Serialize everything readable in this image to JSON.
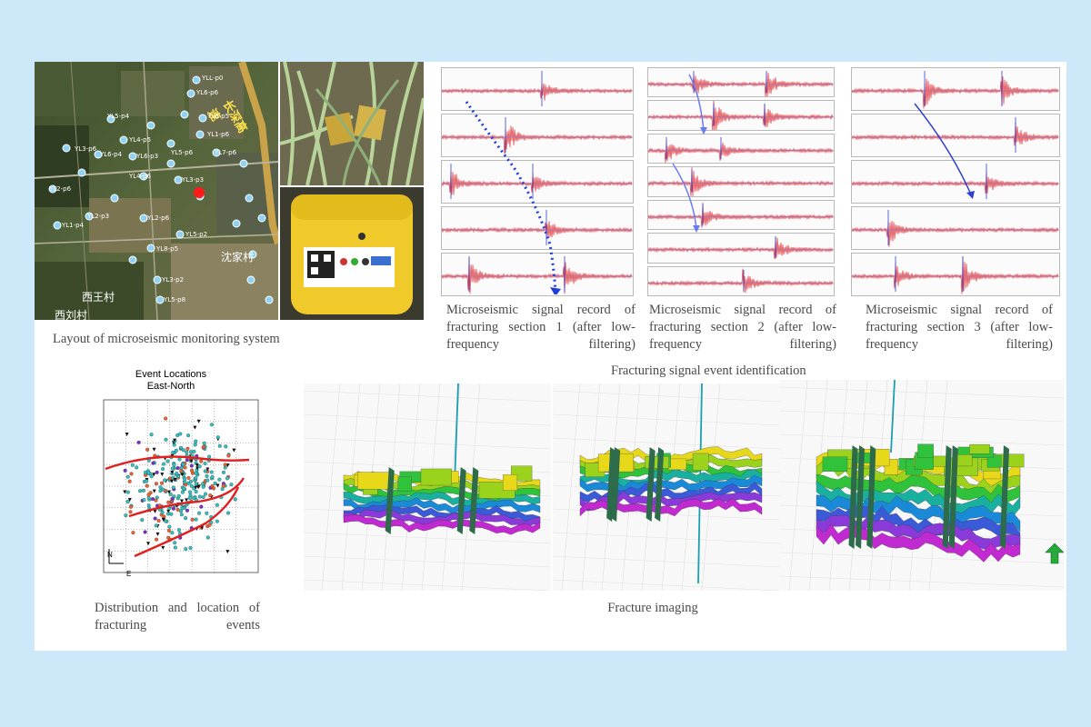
{
  "figure": {
    "map_caption": "Layout of microseismic monitoring system",
    "map_labels": {
      "villages": [
        "西王村",
        "西刘村",
        "沈家村"
      ],
      "road": "长深高速",
      "stations": [
        "YLL-p0",
        "YL6-p6",
        "YL6-p5",
        "YL1-p6",
        "YL7-p6",
        "YL5-p4",
        "YL4-p5",
        "YL3-p6",
        "YL2-p6",
        "YL6-p4",
        "YL6-p3",
        "YL5-p6",
        "YL4-p6",
        "YL3-p3",
        "YL2-p3",
        "YL2-p6",
        "YL1-p4",
        "YL5-p2",
        "YL8-p5",
        "YL3-p2",
        "YL5-p8"
      ]
    },
    "signal_captions": [
      "Microseismic signal record of fracturing section 1 (after low-frequency filtering)",
      "Microseismic signal record of fracturing section 2 (after low-frequency filtering)",
      "Microseismic signal record of fracturing section 3 (after low-frequency filtering)"
    ],
    "signal_group_caption": "Fracturing signal event identification",
    "scatter": {
      "title": "Event Locations",
      "subtitle": "East-North",
      "north_label": "N",
      "east_label": "E"
    },
    "scatter_caption": "Distribution and location of fracturing events",
    "imaging_caption": "Fracture imaging"
  },
  "colors": {
    "background": "#cde8f8",
    "sheet": "#ffffff",
    "caption_text": "#4a4a4a",
    "wave": "#e0343a",
    "pick_line": "#2f3fd0",
    "trend_arrow": "#1f3fd8",
    "fracture_trend": "#e02020"
  }
}
